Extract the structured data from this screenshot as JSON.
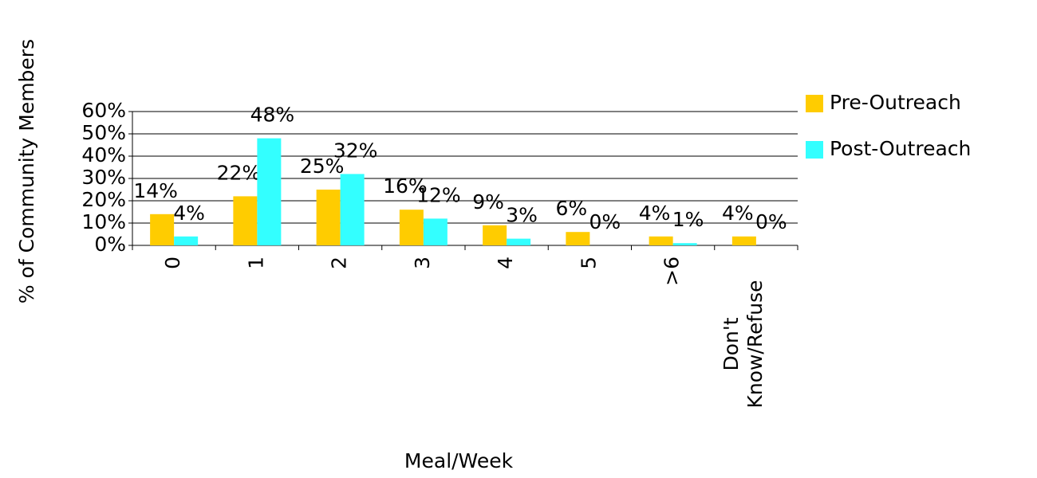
{
  "chart_data": {
    "type": "bar",
    "x_label": "Meal/Week",
    "y_label": "% of Community Members",
    "categories": [
      "0",
      "1",
      "2",
      "3",
      "4",
      "5",
      ">6",
      "Don't Know/Refuse"
    ],
    "series": [
      {
        "name": "Pre-Outreach",
        "color": "#ffcc00",
        "values": [
          14,
          22,
          25,
          16,
          9,
          6,
          4,
          4
        ],
        "value_labels": [
          "14%",
          "22%",
          "25%",
          "16%",
          "9%",
          "6%",
          "4%",
          "4%"
        ]
      },
      {
        "name": "Post-Outreach",
        "color": "#33ffff",
        "values": [
          4,
          48,
          32,
          12,
          3,
          0,
          1,
          0
        ],
        "value_labels": [
          "4%",
          "48%",
          "32%",
          "12%",
          "3%",
          "0%",
          "1%",
          "0%"
        ]
      }
    ],
    "ylim": [
      0,
      60
    ],
    "yticks": [
      {
        "value": 0,
        "label": "0%"
      },
      {
        "value": 10,
        "label": "10%"
      },
      {
        "value": 20,
        "label": "20%"
      },
      {
        "value": 30,
        "label": "30%"
      },
      {
        "value": 40,
        "label": "40%"
      },
      {
        "value": 50,
        "label": "50%"
      },
      {
        "value": 60,
        "label": "60%"
      }
    ],
    "grid": true,
    "legend": "right"
  }
}
